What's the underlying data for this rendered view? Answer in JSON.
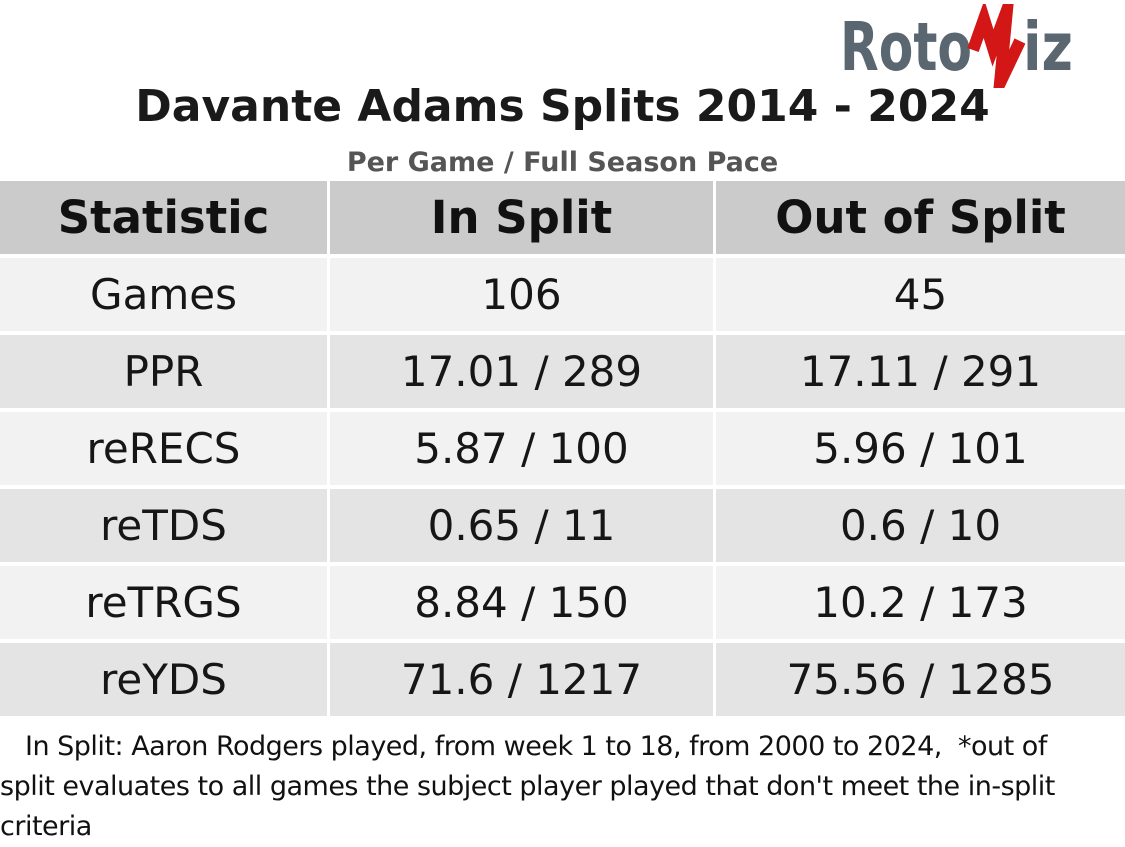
{
  "chart_data": {
    "type": "table",
    "title": "Davante Adams Splits 2014 - 2024",
    "subtitle": "Per Game / Full Season Pace",
    "columns": [
      "Statistic",
      "In Split",
      "Out of Split"
    ],
    "rows": [
      [
        "Games",
        "106",
        "45"
      ],
      [
        "PPR",
        "17.01 / 289",
        "17.11 / 291"
      ],
      [
        "reRECS",
        "5.87 / 100",
        "5.96 / 101"
      ],
      [
        "reTDS",
        "0.65 / 11",
        "0.6 / 10"
      ],
      [
        "reTRGS",
        "8.84 / 150",
        "10.2 / 173"
      ],
      [
        "reYDS",
        "71.6 / 1217",
        "75.56 / 1285"
      ]
    ],
    "note_lines": [
      "In Split: Aaron Rodgers played, from week 1 to 18, from 2000 to 2024,  *out of",
      "split evaluates to all games the subject player played that don't meet the in-split",
      "criteria"
    ],
    "layout_hints": {
      "zebra_striping": true,
      "gridlines": "white separators",
      "value_format": "per game / full season pace"
    }
  },
  "logo": {
    "part1": "Roto",
    "part2": "iz",
    "icon": "heartbeat-zigzag-icon"
  },
  "colors": {
    "accent_red": "#d31616",
    "logo_gray": "#5b6770",
    "header_bg": "#cbcbcb",
    "row_light": "#f2f2f2",
    "row_dark": "#e4e4e4",
    "subtitle_gray": "#555555",
    "title_text": "#1a1a1a"
  }
}
